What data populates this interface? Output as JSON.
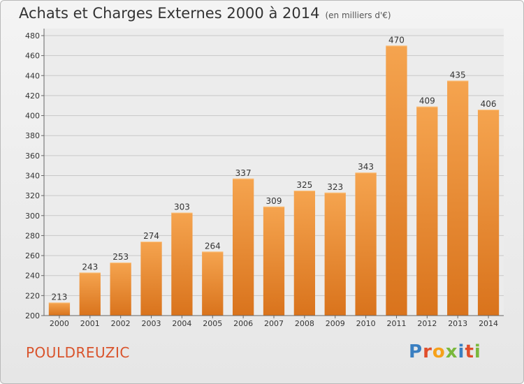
{
  "title": "Achats et Charges Externes 2000 à 2014",
  "unit_label": "(en milliers d'€)",
  "commune": "POULDREUZIC",
  "logo": {
    "letters": [
      "P",
      "r",
      "o",
      "x",
      "i",
      "t",
      "i"
    ],
    "colors": [
      "#3a7fc1",
      "#e04e2b",
      "#f6a11a",
      "#7ab83c",
      "#3a7fc1",
      "#e04e2b",
      "#7ab83c"
    ]
  },
  "colors": {
    "bar_top": "#f5a44f",
    "bar_bottom": "#d9731c",
    "grid": "#c8c8c8"
  },
  "chart_data": {
    "type": "bar",
    "categories": [
      "2000",
      "2001",
      "2002",
      "2003",
      "2004",
      "2005",
      "2006",
      "2007",
      "2008",
      "2009",
      "2010",
      "2011",
      "2012",
      "2013",
      "2014"
    ],
    "values": [
      213,
      243,
      253,
      274,
      303,
      264,
      337,
      309,
      325,
      323,
      343,
      470,
      409,
      435,
      406
    ],
    "ylim": [
      200,
      480
    ],
    "yticks": [
      200,
      220,
      240,
      260,
      280,
      300,
      320,
      340,
      360,
      380,
      400,
      420,
      440,
      460,
      480
    ],
    "grid": true,
    "title": "Achats et Charges Externes 2000 à 2014",
    "xlabel": "",
    "ylabel": ""
  }
}
